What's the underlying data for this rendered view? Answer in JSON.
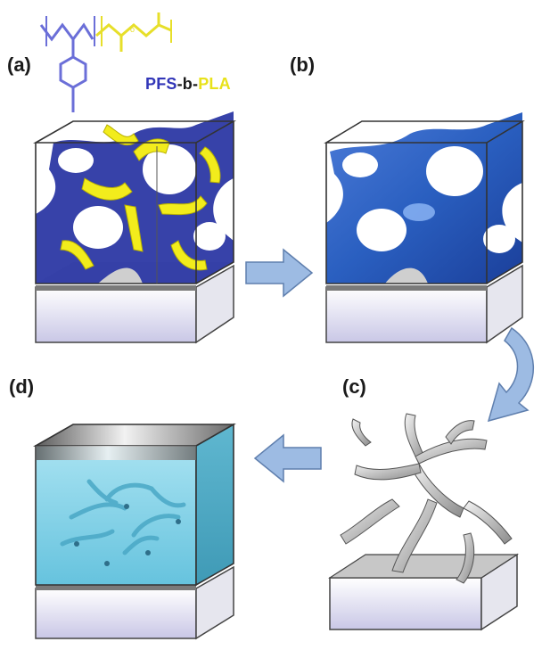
{
  "labels": {
    "a": "(a)",
    "b": "(b)",
    "c": "(c)",
    "d": "(d)"
  },
  "polymer": {
    "pfs": "PFS",
    "sep": "-b-",
    "pla": "PLA"
  },
  "colors": {
    "pfs_blue": "#2e3fa6",
    "pla_yellow": "#f2ec1c",
    "etched_blue": "#2a63c4",
    "arrow_fill": "#9dbbe3",
    "arrow_stroke": "#5f7fae",
    "template_gray": "#bdbdbd",
    "infill_cyan": "#7fd0e6",
    "substrate_gray": "#d0d0d0"
  },
  "icons": {
    "arrow_ab": "right-arrow-icon",
    "arrow_bc": "curved-down-arrow-icon",
    "arrow_cd": "left-arrow-icon"
  }
}
